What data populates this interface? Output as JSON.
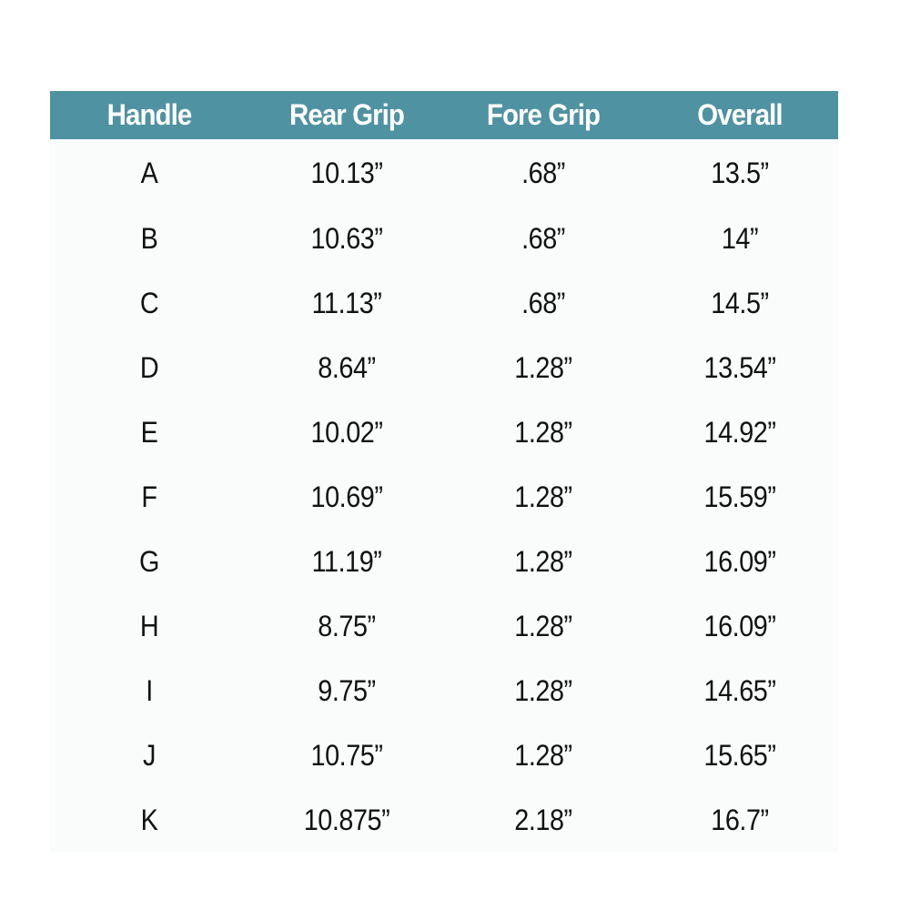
{
  "table": {
    "headers": [
      "Handle",
      "Rear Grip",
      "Fore Grip",
      "Overall"
    ],
    "rows": [
      [
        "A",
        "10.13”",
        ".68”",
        "13.5”"
      ],
      [
        "B",
        "10.63”",
        ".68”",
        "14”"
      ],
      [
        "C",
        "11.13”",
        ".68”",
        "14.5”"
      ],
      [
        "D",
        "8.64”",
        "1.28”",
        "13.54”"
      ],
      [
        "E",
        "10.02”",
        "1.28”",
        "14.92”"
      ],
      [
        "F",
        "10.69”",
        "1.28”",
        "15.59”"
      ],
      [
        "G",
        "11.19”",
        "1.28”",
        "16.09”"
      ],
      [
        "H",
        "8.75”",
        "1.28”",
        "16.09”"
      ],
      [
        "I",
        "9.75”",
        "1.28”",
        "14.65”"
      ],
      [
        "J",
        "10.75”",
        "1.28”",
        "15.65”"
      ],
      [
        "K",
        "10.875”",
        "2.18”",
        "16.7”"
      ]
    ],
    "header_color": "#4f92a2"
  }
}
